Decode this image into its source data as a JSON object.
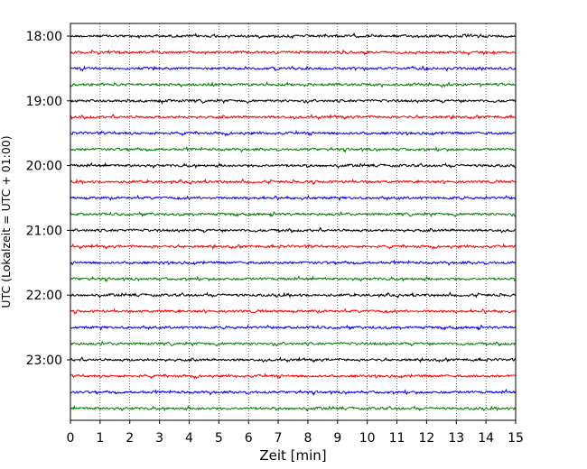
{
  "chart_data": {
    "type": "line",
    "title": "",
    "xlabel": "Zeit  [min]",
    "ylabel": "UTC (Lokalzeit = UTC + 01:00)",
    "xlim": [
      0,
      15
    ],
    "x_ticks": [
      0,
      1,
      2,
      3,
      4,
      5,
      6,
      7,
      8,
      9,
      10,
      11,
      12,
      13,
      14,
      15
    ],
    "y_tick_labels": [
      "18:00",
      "19:00",
      "20:00",
      "21:00",
      "22:00",
      "23:00"
    ],
    "grid": "vertical dotted lines at each minute",
    "trace_start_times": [
      "18:00",
      "18:15",
      "18:30",
      "18:45",
      "19:00",
      "19:15",
      "19:30",
      "19:45",
      "20:00",
      "20:15",
      "20:30",
      "20:45",
      "21:00",
      "21:15",
      "21:30",
      "21:45",
      "22:00",
      "22:15",
      "22:30",
      "22:45",
      "23:00",
      "23:15",
      "23:30",
      "23:45"
    ],
    "trace_minutes": 15,
    "colors": [
      "#000000",
      "#ff0000",
      "#0000ff",
      "#008000"
    ],
    "note_values": "traces are continuous seismic noise; amplitude is not numerically labeled"
  }
}
